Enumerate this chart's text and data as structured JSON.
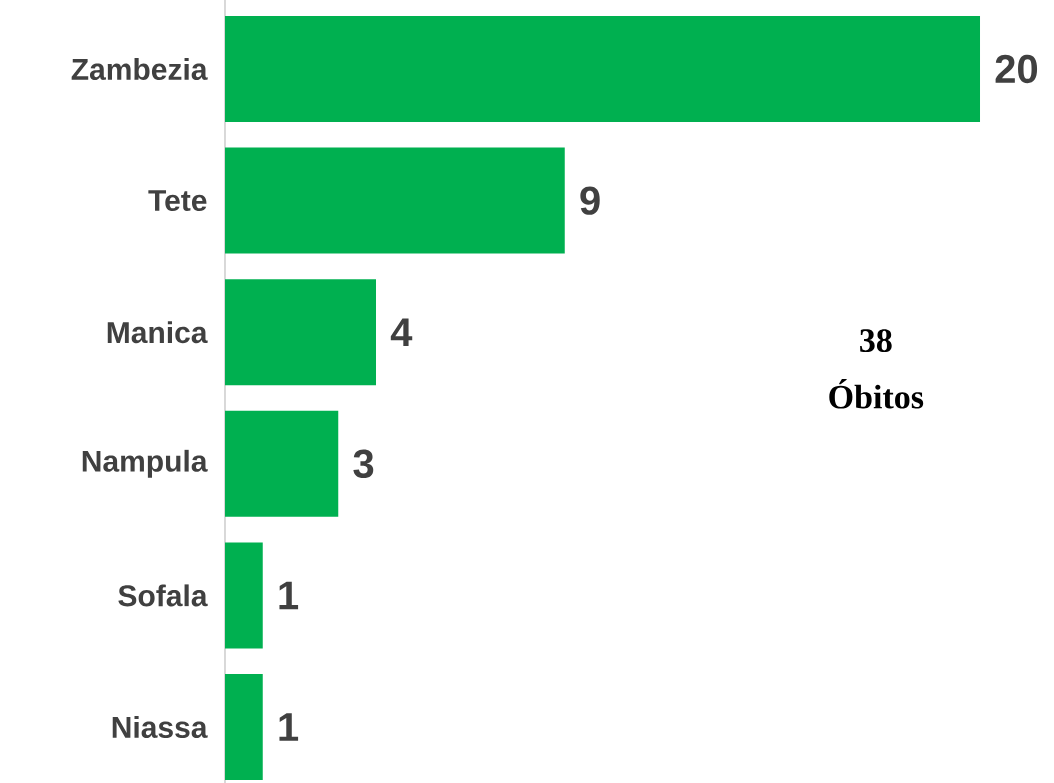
{
  "chart_data": {
    "type": "bar",
    "orientation": "horizontal",
    "categories": [
      "Zambezia",
      "Tete",
      "Manica",
      "Nampula",
      "Sofala",
      "Niassa"
    ],
    "values": [
      20,
      9,
      4,
      3,
      1,
      1
    ],
    "color": "#00b050",
    "data_labels": true,
    "tick_labels": "y",
    "annotations": [
      "38",
      "Óbitos"
    ]
  }
}
